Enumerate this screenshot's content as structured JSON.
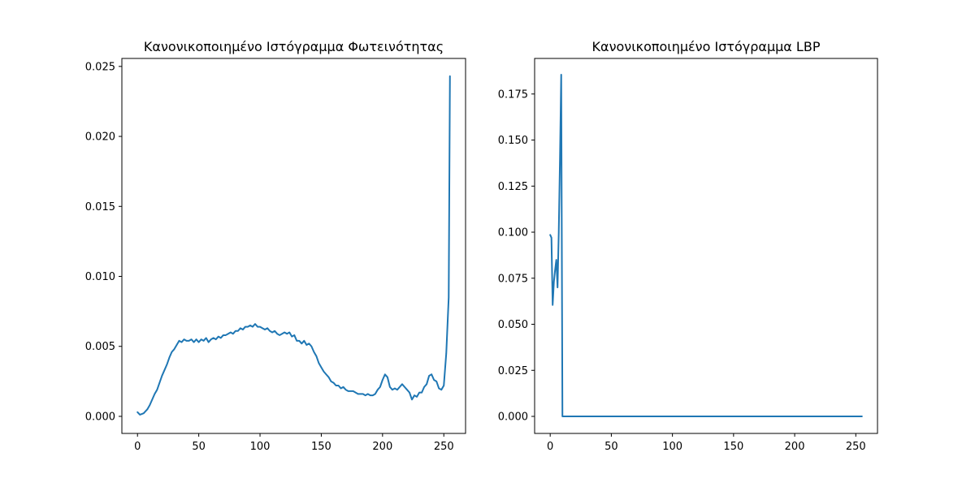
{
  "chart_data": [
    {
      "type": "line",
      "title": "Κανονικοποιημένο Ιστόγραμμα Φωτεινότητας",
      "xlabel": "",
      "ylabel": "",
      "xlim": [
        -12.75,
        267.75
      ],
      "ylim": [
        -0.00122,
        0.02557
      ],
      "xticks": [
        0,
        50,
        100,
        150,
        200,
        250
      ],
      "xtick_labels": [
        "0",
        "50",
        "100",
        "150",
        "200",
        "250"
      ],
      "yticks": [
        0.0,
        0.005,
        0.01,
        0.015,
        0.02,
        0.025
      ],
      "ytick_labels": [
        "0.000",
        "0.005",
        "0.010",
        "0.015",
        "0.020",
        "0.025"
      ],
      "grid": false,
      "series": [
        {
          "color": "#1f77b4",
          "x": [
            0,
            2,
            5,
            8,
            10,
            12,
            14,
            16,
            18,
            20,
            22,
            24,
            26,
            28,
            30,
            32,
            34,
            36,
            38,
            40,
            42,
            44,
            46,
            48,
            50,
            52,
            54,
            56,
            58,
            60,
            62,
            64,
            66,
            68,
            70,
            72,
            74,
            76,
            78,
            80,
            82,
            84,
            86,
            88,
            90,
            92,
            94,
            96,
            98,
            100,
            102,
            104,
            106,
            108,
            110,
            112,
            114,
            116,
            118,
            120,
            122,
            124,
            126,
            128,
            130,
            132,
            134,
            136,
            138,
            140,
            142,
            144,
            146,
            148,
            150,
            152,
            154,
            156,
            158,
            160,
            162,
            164,
            166,
            168,
            170,
            172,
            174,
            176,
            178,
            180,
            182,
            184,
            186,
            188,
            190,
            192,
            194,
            196,
            198,
            200,
            202,
            204,
            206,
            208,
            210,
            212,
            214,
            216,
            218,
            220,
            222,
            224,
            226,
            228,
            230,
            232,
            234,
            236,
            238,
            240,
            242,
            244,
            246,
            248,
            250,
            252,
            254,
            255
          ],
          "values": [
            0.0003,
            0.00012,
            0.00022,
            0.0005,
            0.0008,
            0.0012,
            0.0016,
            0.0019,
            0.0024,
            0.0029,
            0.0033,
            0.0037,
            0.0042,
            0.0046,
            0.0048,
            0.0051,
            0.0054,
            0.0053,
            0.0055,
            0.0054,
            0.0054,
            0.0055,
            0.0053,
            0.0055,
            0.0053,
            0.0055,
            0.0054,
            0.0056,
            0.0053,
            0.0055,
            0.0056,
            0.0055,
            0.0057,
            0.0056,
            0.0058,
            0.0058,
            0.0059,
            0.006,
            0.0059,
            0.0061,
            0.0061,
            0.0063,
            0.0062,
            0.0064,
            0.0064,
            0.0065,
            0.0064,
            0.0066,
            0.0064,
            0.0064,
            0.0063,
            0.0062,
            0.0063,
            0.0061,
            0.006,
            0.0061,
            0.0059,
            0.0058,
            0.0059,
            0.006,
            0.0059,
            0.006,
            0.0057,
            0.0058,
            0.0054,
            0.0054,
            0.0052,
            0.0054,
            0.0051,
            0.0052,
            0.005,
            0.0046,
            0.0043,
            0.0038,
            0.0035,
            0.0032,
            0.003,
            0.0028,
            0.0025,
            0.0024,
            0.0022,
            0.0022,
            0.002,
            0.0021,
            0.0019,
            0.0018,
            0.0018,
            0.0018,
            0.0017,
            0.0016,
            0.0016,
            0.0016,
            0.0015,
            0.0016,
            0.0015,
            0.0015,
            0.0016,
            0.0019,
            0.0021,
            0.0026,
            0.003,
            0.0028,
            0.0021,
            0.0019,
            0.002,
            0.0019,
            0.0021,
            0.0023,
            0.0021,
            0.0019,
            0.0017,
            0.0012,
            0.0015,
            0.0014,
            0.0017,
            0.0017,
            0.0021,
            0.0023,
            0.0029,
            0.003,
            0.0026,
            0.0025,
            0.002,
            0.0019,
            0.0022,
            0.0045,
            0.0085,
            0.0243
          ]
        }
      ]
    },
    {
      "type": "line",
      "title": "Κανονικοποιημένο Ιστόγραμμα LBP",
      "xlabel": "",
      "ylabel": "",
      "xlim": [
        -12.75,
        267.75
      ],
      "ylim": [
        -0.00925,
        0.1943
      ],
      "xticks": [
        0,
        50,
        100,
        150,
        200,
        250
      ],
      "xtick_labels": [
        "0",
        "50",
        "100",
        "150",
        "200",
        "250"
      ],
      "yticks": [
        0.0,
        0.025,
        0.05,
        0.075,
        0.1,
        0.125,
        0.15,
        0.175
      ],
      "ytick_labels": [
        "0.000",
        "0.025",
        "0.050",
        "0.075",
        "0.100",
        "0.125",
        "0.150",
        "0.175"
      ],
      "grid": false,
      "series": [
        {
          "color": "#1f77b4",
          "x": [
            0,
            1,
            2,
            3,
            4,
            5,
            6,
            7,
            8,
            9,
            10,
            255
          ],
          "values": [
            0.0985,
            0.097,
            0.0605,
            0.073,
            0.0795,
            0.085,
            0.07,
            0.1,
            0.14,
            0.1855,
            0.0,
            0.0
          ]
        }
      ]
    }
  ]
}
